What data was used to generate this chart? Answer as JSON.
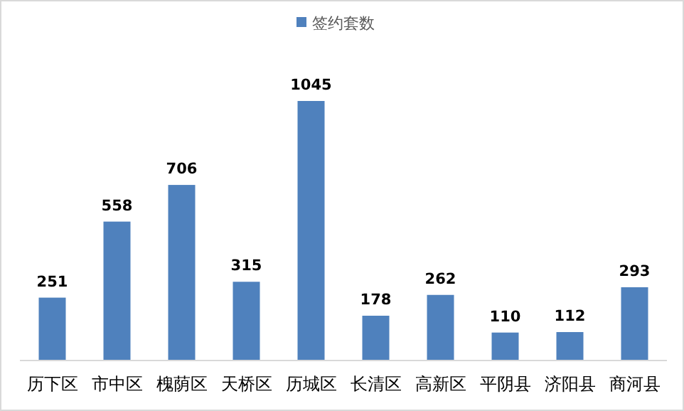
{
  "chart_data": {
    "type": "bar",
    "categories": [
      "历下区",
      "市中区",
      "槐荫区",
      "天桥区",
      "历城区",
      "长清区",
      "高新区",
      "平阴县",
      "济阳县",
      "商河县"
    ],
    "series": [
      {
        "name": "签约套数",
        "color": "#4f81bd",
        "values": [
          251,
          558,
          706,
          315,
          1045,
          178,
          262,
          110,
          112,
          293
        ]
      }
    ],
    "data_labels": true,
    "legend": "top"
  }
}
